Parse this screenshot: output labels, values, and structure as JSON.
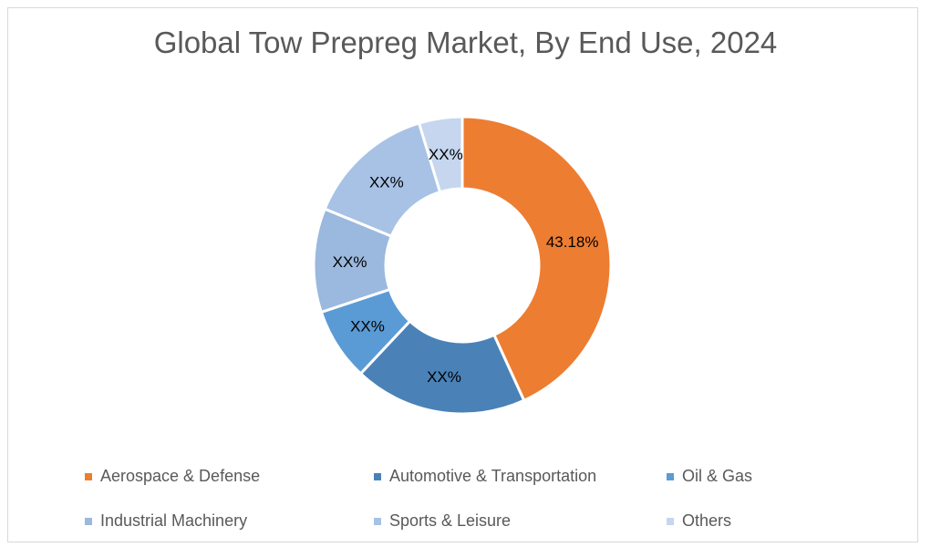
{
  "chart_data": {
    "type": "pie",
    "subtype": "donut",
    "title": "Global Tow Prepreg Market, By End Use, 2024",
    "categories": [
      "Aerospace & Defense",
      "Automotive & Transportation",
      "Oil & Gas",
      "Industrial Machinery",
      "Sports & Leisure",
      "Others"
    ],
    "values": [
      43.18,
      18.8,
      7.9,
      11.3,
      14.1,
      4.7
    ],
    "data_labels": [
      "43.18%",
      "XX%",
      "XX%",
      "XX%",
      "XX%",
      "XX%"
    ],
    "colors": [
      "#ED7D31",
      "#4A82B8",
      "#5B9BD5",
      "#9BB8DE",
      "#A7C2E5",
      "#C5D6EE"
    ],
    "legend_placement": "bottom"
  }
}
